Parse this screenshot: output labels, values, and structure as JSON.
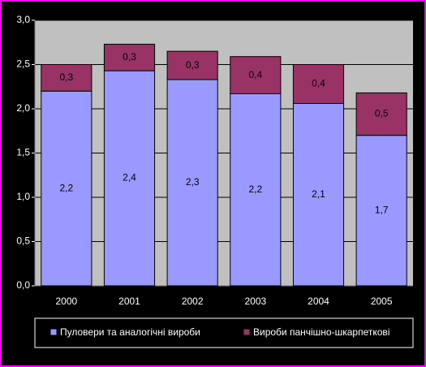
{
  "chart_data": {
    "type": "stacked-bar",
    "categories": [
      "2000",
      "2001",
      "2002",
      "2003",
      "2004",
      "2005"
    ],
    "series": [
      {
        "name": "Пуловери та аналогічні вироби",
        "color": "#9999ff",
        "values": [
          2.2,
          2.43,
          2.33,
          2.17,
          2.06,
          1.7
        ],
        "value_labels": [
          "2,2",
          "2,4",
          "2,3",
          "2,2",
          "2,1",
          "1,7"
        ]
      },
      {
        "name": "Вироби панчішно-шкарпеткові",
        "color": "#993366",
        "values": [
          0.3,
          0.3,
          0.32,
          0.42,
          0.44,
          0.48
        ],
        "value_labels": [
          "0,3",
          "0,3",
          "0,3",
          "0,4",
          "0,4",
          "0,5"
        ]
      }
    ],
    "ylim": [
      0,
      3
    ],
    "yticks": [
      {
        "value": 0,
        "label": "0,0"
      },
      {
        "value": 0.5,
        "label": "0,5"
      },
      {
        "value": 1,
        "label": "1,0"
      },
      {
        "value": 1.5,
        "label": "1,5"
      },
      {
        "value": 2,
        "label": "2,0"
      },
      {
        "value": 2.5,
        "label": "2,5"
      },
      {
        "value": 3,
        "label": "3,0"
      }
    ],
    "grid": true,
    "legend": "bottom"
  }
}
